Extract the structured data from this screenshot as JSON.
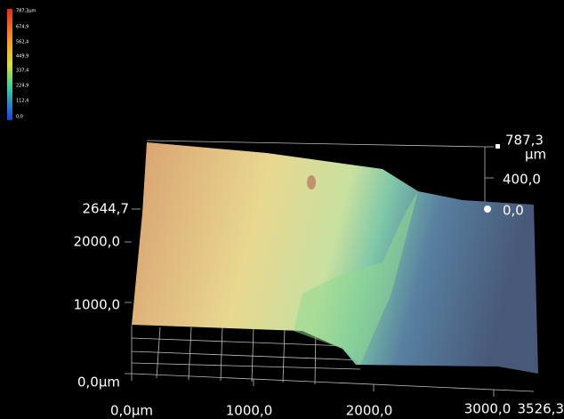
{
  "colorbar": {
    "labels": [
      "787,3µm",
      "674,9",
      "562,4",
      "449,9",
      "337,4",
      "224,9",
      "112,4",
      "0,0"
    ]
  },
  "axes": {
    "x_labels": [
      "0,0µm",
      "1000,0",
      "2000,0",
      "3000,0",
      "3526,3"
    ],
    "y_labels": [
      "0,0µm",
      "1000,0",
      "2000,0",
      "2644,7"
    ],
    "z_labels": [
      "787,3",
      "µm",
      "400,0",
      "0,0"
    ]
  }
}
